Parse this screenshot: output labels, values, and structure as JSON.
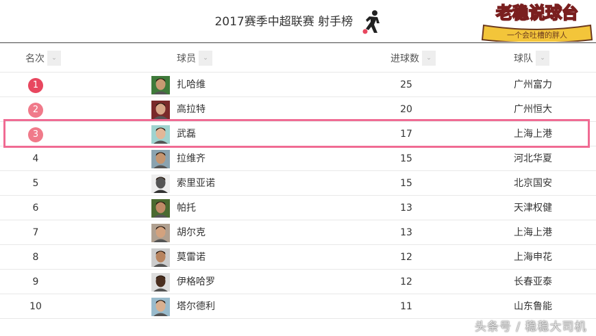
{
  "title": "2017赛季中超联赛 射手榜",
  "logo_text": "老稳说球台",
  "logo_banner": "一个会吐槽的胖人",
  "headers": {
    "rank": "名次",
    "player": "球员",
    "goals": "进球数",
    "team": "球队"
  },
  "sort_icon": "chevron-down-icon",
  "badge_colors": {
    "1": "#e8475f",
    "2": "#f07a8a",
    "3": "#f07a8a"
  },
  "highlight_color": "#f06b93",
  "rows": [
    {
      "rank": "1",
      "name": "扎哈维",
      "goals": "25",
      "team": "广州富力"
    },
    {
      "rank": "2",
      "name": "高拉特",
      "goals": "20",
      "team": "广州恒大"
    },
    {
      "rank": "3",
      "name": "武磊",
      "goals": "17",
      "team": "上海上港"
    },
    {
      "rank": "4",
      "name": "拉维齐",
      "goals": "15",
      "team": "河北华夏"
    },
    {
      "rank": "5",
      "name": "索里亚诺",
      "goals": "15",
      "team": "北京国安"
    },
    {
      "rank": "6",
      "name": "帕托",
      "goals": "13",
      "team": "天津权健"
    },
    {
      "rank": "7",
      "name": "胡尔克",
      "goals": "13",
      "team": "上海上港"
    },
    {
      "rank": "8",
      "name": "莫雷诺",
      "goals": "12",
      "team": "上海申花"
    },
    {
      "rank": "9",
      "name": "伊格哈罗",
      "goals": "12",
      "team": "长春亚泰"
    },
    {
      "rank": "10",
      "name": "塔尔德利",
      "goals": "11",
      "team": "山东鲁能"
    }
  ],
  "watermark": "头条号 / 稳稳大司机"
}
